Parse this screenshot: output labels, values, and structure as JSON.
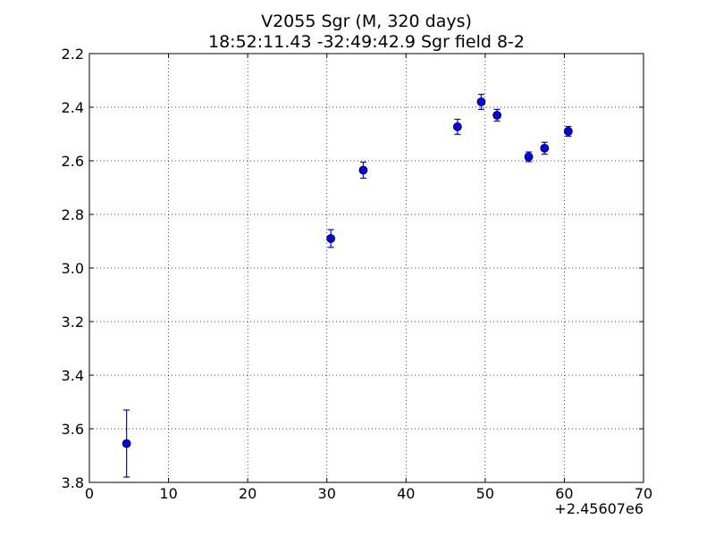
{
  "chart_data": {
    "type": "scatter",
    "title": "V2055 Sgr  (M, 320 days)",
    "subtitle": "18:52:11.43 -32:49:42.9 Sgr field 8-2",
    "xlabel": "",
    "ylabel": "",
    "x_offset_label": "+2.45607e6",
    "xlim": [
      0,
      70
    ],
    "ylim": [
      2.2,
      3.8
    ],
    "y_inverted": true,
    "grid": true,
    "x_ticks": [
      0,
      10,
      20,
      30,
      40,
      50,
      60,
      70
    ],
    "x_tick_labels": [
      "0",
      "10",
      "20",
      "30",
      "40",
      "50",
      "60",
      "70"
    ],
    "y_ticks": [
      2.2,
      2.4,
      2.6,
      2.8,
      3.0,
      3.2,
      3.4,
      3.6,
      3.8
    ],
    "y_tick_labels": [
      "2.2",
      "2.4",
      "2.6",
      "2.8",
      "3.0",
      "3.2",
      "3.4",
      "3.6",
      "3.8"
    ],
    "marker_color": "#0000ff",
    "series": [
      {
        "points": [
          {
            "x": 4.7,
            "y": 3.655,
            "err": 0.125
          },
          {
            "x": 30.5,
            "y": 2.89,
            "err": 0.033
          },
          {
            "x": 34.6,
            "y": 2.635,
            "err": 0.03
          },
          {
            "x": 46.5,
            "y": 2.473,
            "err": 0.028
          },
          {
            "x": 49.5,
            "y": 2.38,
            "err": 0.028
          },
          {
            "x": 51.5,
            "y": 2.43,
            "err": 0.022
          },
          {
            "x": 55.5,
            "y": 2.585,
            "err": 0.018
          },
          {
            "x": 57.5,
            "y": 2.553,
            "err": 0.022
          },
          {
            "x": 60.5,
            "y": 2.49,
            "err": 0.018
          }
        ]
      }
    ]
  }
}
